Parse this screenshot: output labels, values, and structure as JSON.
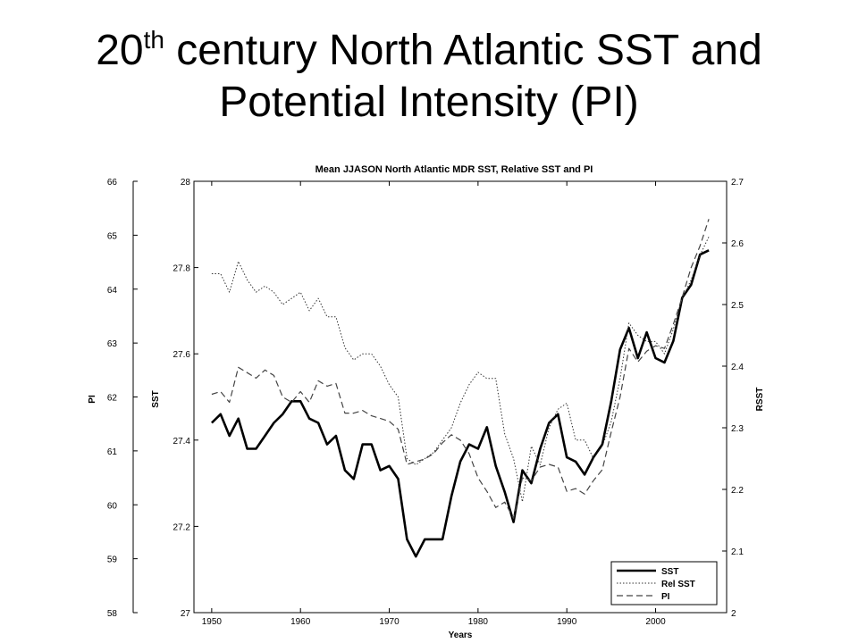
{
  "slide": {
    "title_prefix": "20",
    "title_sup": "th",
    "title_rest": " century North Atlantic SST and",
    "title_line2": "Potential Intensity (PI)"
  },
  "chart_data": {
    "type": "line",
    "title": "Mean JJASON North Atlantic MDR SST, Relative SST and PI",
    "xlabel": "Years",
    "xlim": [
      1948,
      2008
    ],
    "xticks": [
      1950,
      1960,
      1970,
      1980,
      1990,
      2000
    ],
    "axes": {
      "sst": {
        "label": "SST",
        "lim": [
          27,
          28
        ],
        "ticks": [
          27,
          27.2,
          27.4,
          27.6,
          27.8,
          28
        ],
        "tick_labels": [
          "27",
          "27.2",
          "27.4",
          "27.6",
          "27.8",
          "28"
        ]
      },
      "pi": {
        "label": "PI",
        "lim": [
          58,
          66
        ],
        "ticks": [
          58,
          59,
          60,
          61,
          62,
          63,
          64,
          65,
          66
        ],
        "tick_labels": [
          "58",
          "59",
          "60",
          "61",
          "62",
          "63",
          "64",
          "65",
          "66"
        ]
      },
      "rsst": {
        "label": "RSST",
        "lim": [
          2,
          2.7
        ],
        "ticks": [
          2,
          2.1,
          2.2,
          2.3,
          2.4,
          2.5,
          2.6,
          2.7
        ],
        "tick_labels": [
          "2",
          "2.1",
          "2.2",
          "2.3",
          "2.4",
          "2.5",
          "2.6",
          "2.7"
        ]
      }
    },
    "legend_position": "bottom-right",
    "x": [
      1950,
      1951,
      1952,
      1953,
      1954,
      1955,
      1956,
      1957,
      1958,
      1959,
      1960,
      1961,
      1962,
      1963,
      1964,
      1965,
      1966,
      1967,
      1968,
      1969,
      1970,
      1971,
      1972,
      1973,
      1974,
      1975,
      1976,
      1977,
      1978,
      1979,
      1980,
      1981,
      1982,
      1983,
      1984,
      1985,
      1986,
      1987,
      1988,
      1989,
      1990,
      1991,
      1992,
      1993,
      1994,
      1995,
      1996,
      1997,
      1998,
      1999,
      2000,
      2001,
      2002,
      2003,
      2004,
      2005,
      2006
    ],
    "series": [
      {
        "name": "SST",
        "axis": "sst",
        "style": "solid",
        "values": [
          27.44,
          27.46,
          27.41,
          27.45,
          27.38,
          27.38,
          27.41,
          27.44,
          27.46,
          27.49,
          27.49,
          27.45,
          27.44,
          27.39,
          27.41,
          27.33,
          27.31,
          27.39,
          27.39,
          27.33,
          27.34,
          27.31,
          27.17,
          27.13,
          27.17,
          27.17,
          27.17,
          27.27,
          27.35,
          27.39,
          27.38,
          27.43,
          27.34,
          27.28,
          27.21,
          27.33,
          27.3,
          27.38,
          27.44,
          27.46,
          27.36,
          27.35,
          27.32,
          27.36,
          27.39,
          27.49,
          27.61,
          27.66,
          27.59,
          27.65,
          27.59,
          27.58,
          27.63,
          27.73,
          27.76,
          27.83,
          27.84
        ]
      },
      {
        "name": "Rel SST",
        "axis": "rsst",
        "style": "dotted",
        "values": [
          2.55,
          2.55,
          2.52,
          2.57,
          2.54,
          2.52,
          2.53,
          2.52,
          2.5,
          2.51,
          2.52,
          2.49,
          2.51,
          2.48,
          2.48,
          2.43,
          2.41,
          2.42,
          2.42,
          2.4,
          2.37,
          2.35,
          2.25,
          2.24,
          2.25,
          2.26,
          2.28,
          2.3,
          2.34,
          2.37,
          2.39,
          2.38,
          2.38,
          2.29,
          2.25,
          2.18,
          2.27,
          2.24,
          2.3,
          2.33,
          2.34,
          2.28,
          2.28,
          2.25,
          2.27,
          2.31,
          2.38,
          2.47,
          2.45,
          2.44,
          2.44,
          2.42,
          2.46,
          2.51,
          2.54,
          2.58,
          2.61
        ]
      },
      {
        "name": "PI",
        "axis": "pi",
        "style": "dashed",
        "values": [
          62.05,
          62.1,
          61.9,
          62.55,
          62.45,
          62.35,
          62.5,
          62.4,
          62.0,
          61.9,
          62.1,
          61.9,
          62.3,
          62.2,
          62.25,
          61.7,
          61.7,
          61.75,
          61.65,
          61.6,
          61.55,
          61.4,
          60.75,
          60.8,
          60.85,
          60.95,
          61.15,
          61.3,
          61.2,
          60.95,
          60.5,
          60.25,
          59.95,
          60.05,
          59.75,
          60.5,
          60.45,
          60.7,
          60.75,
          60.7,
          60.25,
          60.3,
          60.2,
          60.45,
          60.65,
          61.35,
          62.0,
          62.9,
          62.65,
          62.85,
          62.95,
          62.9,
          63.35,
          63.85,
          64.4,
          64.8,
          65.3
        ]
      }
    ]
  }
}
